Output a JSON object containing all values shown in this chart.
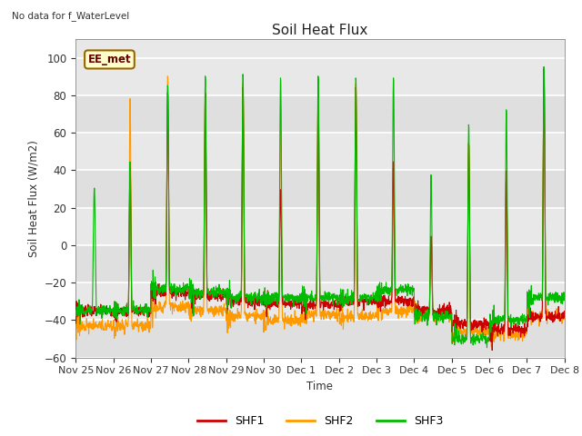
{
  "title": "Soil Heat Flux",
  "top_left_text": "No data for f_WaterLevel",
  "ylabel": "Soil Heat Flux (W/m2)",
  "xlabel": "Time",
  "ylim": [
    -60,
    110
  ],
  "yticks": [
    -60,
    -40,
    -20,
    0,
    20,
    40,
    60,
    80,
    100
  ],
  "xtick_labels": [
    "Nov 25",
    "Nov 26",
    "Nov 27",
    "Nov 28",
    "Nov 29",
    "Nov 30",
    "Dec 1",
    "Dec 2",
    "Dec 3",
    "Dec 4",
    "Dec 5",
    "Dec 6",
    "Dec 7",
    "Dec 8"
  ],
  "legend_labels": [
    "SHF1",
    "SHF2",
    "SHF3"
  ],
  "line_colors": [
    "#cc0000",
    "#ff9900",
    "#00bb00"
  ],
  "bg_color": "#e8e8e8",
  "box_label": "EE_met",
  "box_facecolor": "#ffffcc",
  "box_edgecolor": "#996600",
  "n_days": 13,
  "pts_per_day": 144,
  "night_base_shf1": [
    -35,
    -35,
    -25,
    -27,
    -30,
    -31,
    -32,
    -30,
    -30,
    -35,
    -42,
    -45,
    -38
  ],
  "night_base_shf2": [
    -43,
    -43,
    -33,
    -35,
    -38,
    -40,
    -37,
    -38,
    -35,
    -38,
    -46,
    -48,
    -38
  ],
  "night_base_shf3": [
    -35,
    -35,
    -23,
    -25,
    -28,
    -28,
    -28,
    -28,
    -24,
    -38,
    -50,
    -40,
    -28
  ],
  "peak_shf1": [
    0,
    43,
    82,
    82,
    85,
    30,
    82,
    85,
    45,
    5,
    55,
    40,
    95
  ],
  "peak_shf2": [
    0,
    79,
    91,
    82,
    87,
    75,
    90,
    87,
    35,
    5,
    55,
    40,
    96
  ],
  "peak_shf3": [
    31,
    45,
    86,
    91,
    92,
    90,
    91,
    90,
    90,
    38,
    65,
    73,
    96
  ],
  "peak_center": [
    0.5,
    0.45,
    0.45,
    0.45,
    0.45,
    0.45,
    0.45,
    0.45,
    0.45,
    0.45,
    0.45,
    0.45,
    0.45
  ],
  "peak_width": [
    0.12,
    0.1,
    0.1,
    0.1,
    0.1,
    0.1,
    0.1,
    0.1,
    0.1,
    0.1,
    0.1,
    0.1,
    0.1
  ]
}
